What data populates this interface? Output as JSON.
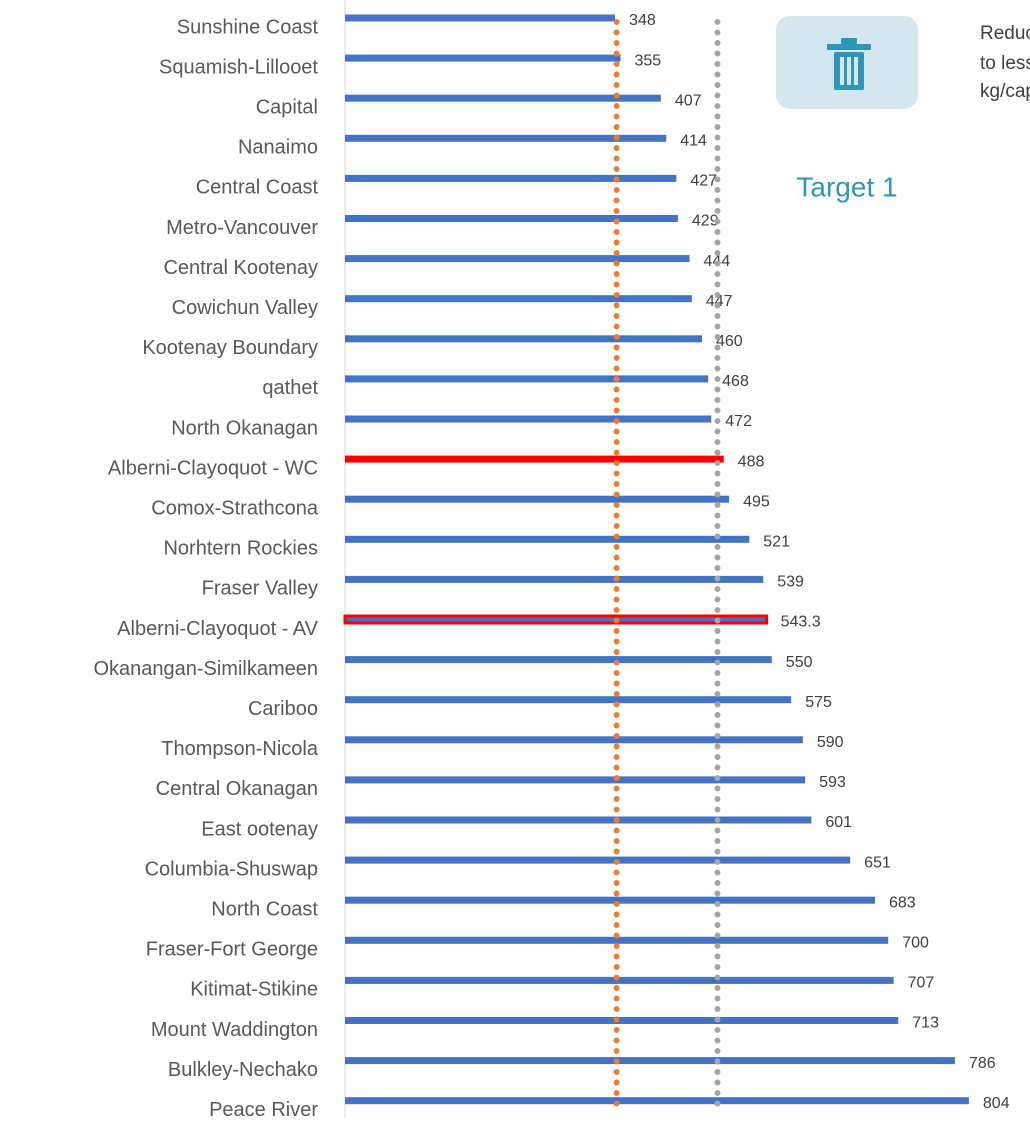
{
  "chart_data": {
    "type": "hbar",
    "categories": [
      "Sunshine Coast",
      "Squamish-Lillooet",
      "Capital",
      "Nanaimo",
      "Central Coast",
      "Metro-Vancouver",
      "Central Kootenay",
      "Cowichun Valley",
      "Kootenay Boundary",
      "qathet",
      "North Okanagan",
      "Alberni-Clayoquot - WC",
      "Comox-Strathcona",
      "Norhtern Rockies",
      "Fraser Valley",
      "Alberni-Clayoquot - AV",
      "Okanangan-Similkameen",
      "Cariboo",
      "Thompson-Nicola",
      "Central Okanagan",
      "East ootenay",
      "Columbia-Shuswap",
      "North Coast",
      "Fraser-Fort George",
      "Kitimat-Stikine",
      "Mount Waddington",
      "Bulkley-Nechako",
      "Peace River"
    ],
    "values": [
      348,
      355,
      407,
      414,
      427,
      429,
      444,
      447,
      460,
      468,
      472,
      488,
      495,
      521,
      539,
      543.3,
      550,
      575,
      590,
      593,
      601,
      651,
      683,
      700,
      707,
      713,
      786,
      804
    ],
    "color": "#4472c4",
    "bar_colors": [
      null,
      null,
      null,
      null,
      null,
      null,
      null,
      null,
      null,
      null,
      null,
      "#ff0000",
      null,
      null,
      null,
      null,
      null,
      null,
      null,
      null,
      null,
      null,
      null,
      null,
      null,
      null,
      null,
      null
    ],
    "bar_outlines": [
      null,
      null,
      null,
      null,
      null,
      null,
      null,
      null,
      null,
      null,
      null,
      null,
      null,
      null,
      null,
      "#ff0000",
      null,
      null,
      null,
      null,
      null,
      null,
      null,
      null,
      null,
      null,
      null,
      null
    ],
    "xlim": [
      0,
      880
    ],
    "reference_lines": [
      {
        "value": 350,
        "color": "#ed7d31"
      },
      {
        "value": 480,
        "color": "#a5a5a5"
      }
    ],
    "inset": {
      "label": "Target 1",
      "text": [
        "Reduc",
        "to less",
        "kg/cap"
      ]
    }
  }
}
